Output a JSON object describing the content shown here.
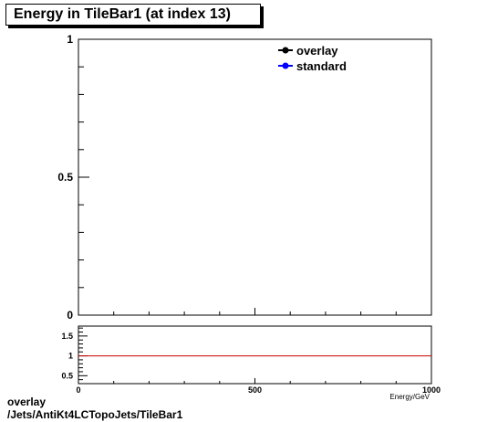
{
  "title": "Energy in TileBar1 (at index 13)",
  "footer": {
    "line1": "overlay",
    "line2": "/Jets/AntiKt4LCTopoJets/TileBar1"
  },
  "colors": {
    "overlay": "#000000",
    "standard": "#0000ff",
    "ratio_line": "#cc0000"
  },
  "chart_data": [
    {
      "type": "line",
      "title": "Energy in TileBar1 (at index 13)",
      "xlabel": "Energy/GeV",
      "ylabel": "",
      "xlim": [
        0,
        1000
      ],
      "ylim": [
        0,
        1
      ],
      "y_ticks": [
        {
          "value": 0,
          "label": "0"
        },
        {
          "value": 0.5,
          "label": "0.5"
        },
        {
          "value": 1,
          "label": "1"
        }
      ],
      "legend_position": "top-right",
      "series": [
        {
          "name": "overlay",
          "color": "#000000",
          "x": [],
          "y": []
        },
        {
          "name": "standard",
          "color": "#0000ff",
          "x": [],
          "y": []
        }
      ]
    },
    {
      "type": "line",
      "xlabel": "Energy/GeV",
      "xlim": [
        0,
        1000
      ],
      "ylim": [
        0.3,
        1.75
      ],
      "x_ticks": [
        {
          "value": 0,
          "label": "0"
        },
        {
          "value": 500,
          "label": "500"
        },
        {
          "value": 1000,
          "label": "1000"
        }
      ],
      "y_ticks": [
        {
          "value": 0.5,
          "label": "0.5"
        },
        {
          "value": 1,
          "label": "1"
        },
        {
          "value": 1.5,
          "label": "1.5"
        }
      ],
      "reference_line": 1
    }
  ]
}
